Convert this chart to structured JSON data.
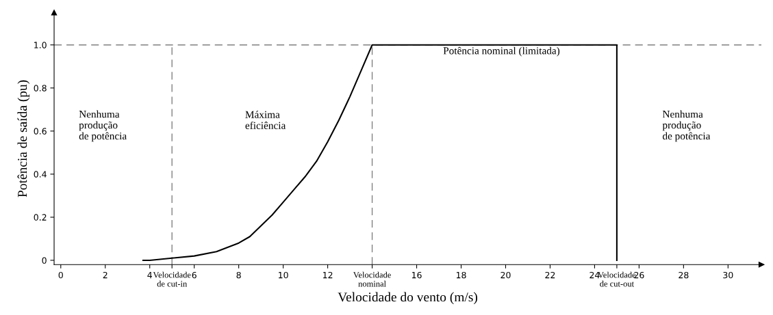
{
  "chart_data": {
    "type": "line",
    "xlabel": "Velocidade do vento (m/s)",
    "ylabel": "Potência de saída (pu)",
    "series": [
      {
        "color": "#000000",
        "x": [
          3.7,
          4,
          5,
          6,
          7,
          7.5,
          8,
          8.5,
          9,
          9.5,
          10,
          10.5,
          11,
          11.5,
          12,
          12.5,
          13,
          13.5,
          14,
          25,
          25
        ],
        "values": [
          0,
          0,
          0.01,
          0.02,
          0.04,
          0.06,
          0.08,
          0.11,
          0.16,
          0.21,
          0.27,
          0.33,
          0.39,
          0.46,
          0.55,
          0.65,
          0.76,
          0.88,
          1,
          1,
          0
        ]
      }
    ],
    "xlim": [
      -0.3,
      31.5
    ],
    "ylim": [
      -0.02,
      1.15
    ],
    "xticks": [
      0,
      2,
      4,
      {
        "value": 5,
        "label": "Velocidade\nde cut-in"
      },
      6,
      8,
      10,
      12,
      {
        "value": 14,
        "label": "Velocidade\nnominal"
      },
      16,
      18,
      20,
      22,
      24,
      {
        "value": 25,
        "label": "Velocidade\nde cut-out"
      },
      26,
      28,
      30
    ],
    "yticks": [
      0,
      0.2,
      0.4,
      0.6,
      0.8,
      {
        "value": 1,
        "label": "1.0"
      }
    ],
    "ref_lines": [
      {
        "axis": "y",
        "value": 1,
        "color": "#808080",
        "line_style": "dashed"
      },
      {
        "axis": "x",
        "value": 5,
        "color": "#808080",
        "line_style": "dashed"
      },
      {
        "axis": "x",
        "value": 14,
        "color": "#808080",
        "line_style": "dashed"
      }
    ],
    "annotations": [
      "Nenhuma\nprodução\nde potência",
      "Máxima\neficiência",
      "Potência nominal (limitada)",
      "Nenhuma\nprodução\nde potência"
    ],
    "grid": false,
    "legend": false,
    "marker": "none",
    "line_style": "solid"
  }
}
